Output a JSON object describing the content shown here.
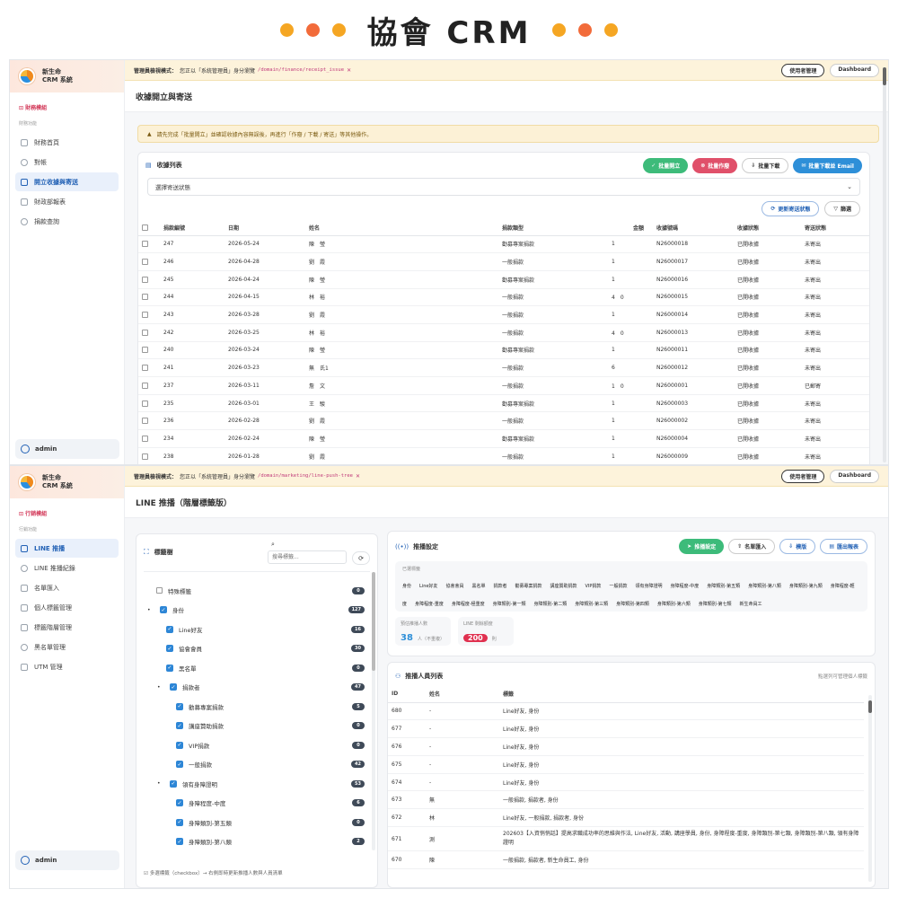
{
  "hero": {
    "title": "協會 CRM",
    "dot_colors": [
      "#f5a623",
      "#f26b3a",
      "#f5a623",
      "#f5a623",
      "#f26b3a",
      "#f5a623"
    ]
  },
  "app": {
    "brand_line1": "新生命",
    "brand_line2": "CRM 系統",
    "user": "admin"
  },
  "impersonation": {
    "label": "管理員檢視模式：",
    "text": "您正以「系統管理員」身分瀏覽",
    "manage_btn": "使用者管理",
    "dashboard_btn": "Dashboard"
  },
  "screen1": {
    "section": "財務模組",
    "group": "財務功能",
    "nav": [
      "財務首頁",
      "對帳",
      "開立收據與寄送",
      "財政部報表",
      "捐款查詢"
    ],
    "path": "/domain/finance/receipt_issue",
    "page_title": "收據開立與寄送",
    "warning": "請先完成「批量開立」並確認收據內容無誤後，再進行「作廢 / 下載 / 寄送」等其他操作。",
    "list_title": "收據列表",
    "buttons": {
      "bulk_issue": "批量開立",
      "bulk_void": "批量作廢",
      "bulk_download": "批量下載",
      "bulk_email": "批量下載並 Email"
    },
    "status_select": "選擇寄送狀態",
    "update_status": "更新寄送狀態",
    "filter": "篩選",
    "columns": [
      "捐款編號",
      "日期",
      "姓名",
      "捐款類型",
      "金額",
      "收據號碼",
      "收據狀態",
      "寄送狀態"
    ],
    "rows": [
      [
        "247",
        "2026-05-24",
        "陳　瑩",
        "勸募專案捐款",
        "1",
        "N26000018",
        "已開收據",
        "未寄出"
      ],
      [
        "246",
        "2026-04-28",
        "劉　霞",
        "一般捐款",
        "1",
        "N26000017",
        "已開收據",
        "未寄出"
      ],
      [
        "245",
        "2026-04-24",
        "陳　瑩",
        "勸募專案捐款",
        "1",
        "N26000016",
        "已開收據",
        "未寄出"
      ],
      [
        "244",
        "2026-04-15",
        "林　裕",
        "一般捐款",
        "4　0",
        "N26000015",
        "已開收據",
        "未寄出"
      ],
      [
        "243",
        "2026-03-28",
        "劉　霞",
        "一般捐款",
        "1",
        "N26000014",
        "已開收據",
        "未寄出"
      ],
      [
        "242",
        "2026-03-25",
        "林　裕",
        "一般捐款",
        "4　0",
        "N26000013",
        "已開收據",
        "未寄出"
      ],
      [
        "240",
        "2026-03-24",
        "陳　瑩",
        "勸募專案捐款",
        "1",
        "N26000011",
        "已開收據",
        "未寄出"
      ],
      [
        "241",
        "2026-03-23",
        "無　氏1",
        "一般捐款",
        "6",
        "N26000012",
        "已開收據",
        "未寄出"
      ],
      [
        "237",
        "2026-03-11",
        "詹　文",
        "一般捐款",
        "1　0",
        "N26000001",
        "已開收據",
        "已郵寄"
      ],
      [
        "235",
        "2026-03-01",
        "王　駿",
        "勸募專案捐款",
        "1",
        "N26000003",
        "已開收據",
        "未寄出"
      ],
      [
        "236",
        "2026-02-28",
        "劉　霞",
        "一般捐款",
        "1",
        "N26000002",
        "已開收據",
        "未寄出"
      ],
      [
        "234",
        "2026-02-24",
        "陳　瑩",
        "勸募專案捐款",
        "1",
        "N26000004",
        "已開收據",
        "未寄出"
      ],
      [
        "238",
        "2026-01-28",
        "劉　霞",
        "一般捐款",
        "1",
        "N26000009",
        "已開收據",
        "未寄出"
      ]
    ]
  },
  "screen2": {
    "section": "行銷模組",
    "group": "行銷功能",
    "nav": [
      "LINE 推播",
      "LINE 推播紀錄",
      "名單匯入",
      "個人標籤管理",
      "標籤階層管理",
      "黑名單管理",
      "UTM 管理"
    ],
    "path": "/domain/marketing/line-push-tree",
    "page_title": "LINE 推播（階層標籤版）",
    "tree_title": "標籤樹",
    "search_placeholder": "搜尋標籤...",
    "tree": [
      {
        "label": "特殊標籤",
        "count": "0",
        "level": 0,
        "checked": false,
        "expander": false
      },
      {
        "label": "身份",
        "count": "127",
        "level": 0,
        "checked": true,
        "expander": true
      },
      {
        "label": "Line好友",
        "count": "16",
        "level": 1,
        "checked": true,
        "expander": false
      },
      {
        "label": "協會會員",
        "count": "30",
        "level": 1,
        "checked": true,
        "expander": false
      },
      {
        "label": "黑名單",
        "count": "0",
        "level": 1,
        "checked": true,
        "expander": false
      },
      {
        "label": "捐款者",
        "count": "47",
        "level": 1,
        "checked": true,
        "expander": true
      },
      {
        "label": "勸募專案捐款",
        "count": "5",
        "level": 2,
        "checked": true,
        "expander": false
      },
      {
        "label": "講座贊助捐款",
        "count": "0",
        "level": 2,
        "checked": true,
        "expander": false
      },
      {
        "label": "VIP捐款",
        "count": "0",
        "level": 2,
        "checked": true,
        "expander": false
      },
      {
        "label": "一般捐款",
        "count": "42",
        "level": 2,
        "checked": true,
        "expander": false
      },
      {
        "label": "領有身障證明",
        "count": "53",
        "level": 1,
        "checked": true,
        "expander": true
      },
      {
        "label": "身障程度-中度",
        "count": "6",
        "level": 2,
        "checked": true,
        "expander": false
      },
      {
        "label": "身障類別-第五類",
        "count": "0",
        "level": 2,
        "checked": true,
        "expander": false
      },
      {
        "label": "身障類別-第八類",
        "count": "2",
        "level": 2,
        "checked": true,
        "expander": false
      }
    ],
    "tree_footer": "多選標籤（checkbox）→ 右側即時更新推播人數與人員清單",
    "push_title": "推播設定",
    "push_buttons": {
      "send": "推播設定",
      "import": "名單匯入",
      "template": "模版",
      "report": "匯出報表"
    },
    "selected_label": "已選標籤",
    "selected_tags": [
      "身份",
      "Line好友",
      "協會會員",
      "黑名單",
      "捐款者",
      "勸募專案捐款",
      "講座贊助捐款",
      "VIP捐款",
      "一般捐款",
      "領有身障證明",
      "身障程度-中度",
      "身障類別-第五類",
      "身障類別-第八類",
      "身障類別-第九類",
      "身障程度-輕度",
      "身障程度-重度",
      "身障程度-極重度",
      "身障類別-第一類",
      "身障類別-第二類",
      "身障類別-第三類",
      "身障類別-第四類",
      "身障類別-第六類",
      "身障類別-第七類",
      "新生命員工"
    ],
    "est_label": "預估推播人數",
    "est_value": "38",
    "est_unit": "人（不重複）",
    "quota_label": "LINE 剩餘額度",
    "quota_value": "200",
    "quota_unit": "則",
    "members_title": "推播人員列表",
    "members_hint": "點選列可管理個人標籤",
    "member_columns": [
      "ID",
      "姓名",
      "標籤"
    ],
    "members": [
      [
        "680",
        "-",
        "Line好友, 身份"
      ],
      [
        "677",
        "-",
        "Line好友, 身份"
      ],
      [
        "676",
        "-",
        "Line好友, 身份"
      ],
      [
        "675",
        "-",
        "Line好友, 身份"
      ],
      [
        "674",
        "-",
        "Line好友, 身份"
      ],
      [
        "673",
        "無",
        "一般捐款, 捐款者, 身份"
      ],
      [
        "672",
        "林",
        "Line好友, 一般捐款, 捐款者, 身份"
      ],
      [
        "671",
        "測",
        "202603【入資悄悄話】提高求職成功率的思維與作法, Line好友, 活動, 講座學員, 身份, 身障程度-重度, 身障類別-第七類, 身障類別-第八類, 領有身障證明"
      ],
      [
        "670",
        "陳",
        "一般捐款, 捐款者, 新生命員工, 身份"
      ]
    ]
  }
}
